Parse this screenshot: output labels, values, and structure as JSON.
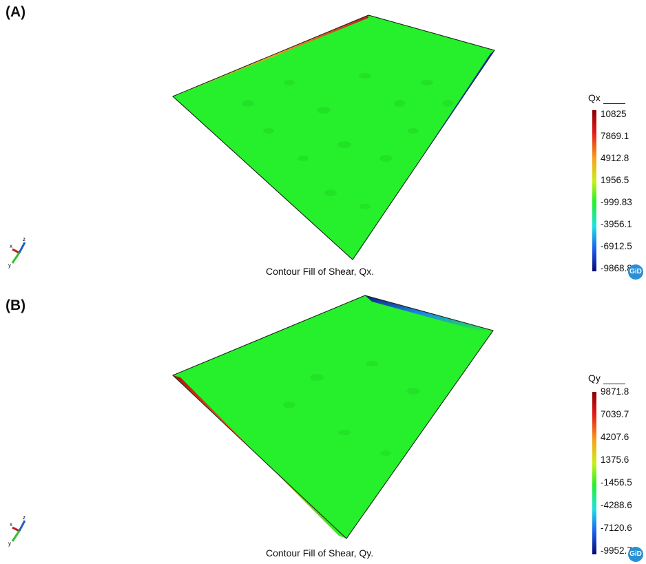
{
  "panels": [
    {
      "label": "(A)",
      "caption": "Contour Fill of Shear, Qx.",
      "legend": {
        "title": "Qx",
        "ticks": [
          "10825",
          "7869.1",
          "4912.8",
          "1956.5",
          "-999.83",
          "-3956.1",
          "-6912.5",
          "-9868.8"
        ]
      }
    },
    {
      "label": "(B)",
      "caption": "Contour Fill of Shear, Qy.",
      "legend": {
        "title": "Qy",
        "ticks": [
          "9871.8",
          "7039.7",
          "4207.6",
          "1375.6",
          "-1456.5",
          "-4288.6",
          "-7120.6",
          "-9952.7"
        ]
      }
    }
  ],
  "logo": "GiD",
  "axes_labels": [
    "x",
    "y",
    "z"
  ],
  "colors": {
    "plate_fill": "#26f02b",
    "max_edge": "#c0181c",
    "min_edge": "#1530c8",
    "gid_logo": "#2a90d6"
  },
  "icons": [
    "xyz-axes-icon",
    "gid-logo-icon"
  ]
}
